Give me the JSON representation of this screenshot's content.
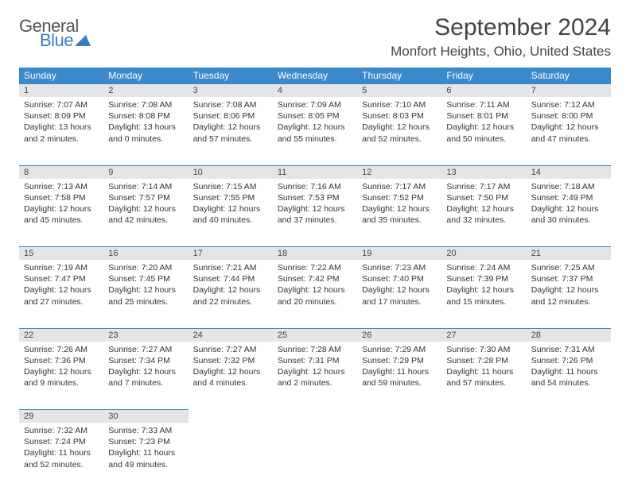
{
  "logo": {
    "line1": "General",
    "line2": "Blue"
  },
  "title": "September 2024",
  "location": "Monfort Heights, Ohio, United States",
  "colors": {
    "header_bg": "#3a8acb",
    "accent": "#3a7fc4",
    "daynum_bg": "#e5e5e5"
  },
  "day_headers": [
    "Sunday",
    "Monday",
    "Tuesday",
    "Wednesday",
    "Thursday",
    "Friday",
    "Saturday"
  ],
  "weeks": [
    [
      {
        "n": "1",
        "sr": "7:07 AM",
        "ss": "8:09 PM",
        "dl": "13 hours and 2 minutes."
      },
      {
        "n": "2",
        "sr": "7:08 AM",
        "ss": "8:08 PM",
        "dl": "13 hours and 0 minutes."
      },
      {
        "n": "3",
        "sr": "7:08 AM",
        "ss": "8:06 PM",
        "dl": "12 hours and 57 minutes."
      },
      {
        "n": "4",
        "sr": "7:09 AM",
        "ss": "8:05 PM",
        "dl": "12 hours and 55 minutes."
      },
      {
        "n": "5",
        "sr": "7:10 AM",
        "ss": "8:03 PM",
        "dl": "12 hours and 52 minutes."
      },
      {
        "n": "6",
        "sr": "7:11 AM",
        "ss": "8:01 PM",
        "dl": "12 hours and 50 minutes."
      },
      {
        "n": "7",
        "sr": "7:12 AM",
        "ss": "8:00 PM",
        "dl": "12 hours and 47 minutes."
      }
    ],
    [
      {
        "n": "8",
        "sr": "7:13 AM",
        "ss": "7:58 PM",
        "dl": "12 hours and 45 minutes."
      },
      {
        "n": "9",
        "sr": "7:14 AM",
        "ss": "7:57 PM",
        "dl": "12 hours and 42 minutes."
      },
      {
        "n": "10",
        "sr": "7:15 AM",
        "ss": "7:55 PM",
        "dl": "12 hours and 40 minutes."
      },
      {
        "n": "11",
        "sr": "7:16 AM",
        "ss": "7:53 PM",
        "dl": "12 hours and 37 minutes."
      },
      {
        "n": "12",
        "sr": "7:17 AM",
        "ss": "7:52 PM",
        "dl": "12 hours and 35 minutes."
      },
      {
        "n": "13",
        "sr": "7:17 AM",
        "ss": "7:50 PM",
        "dl": "12 hours and 32 minutes."
      },
      {
        "n": "14",
        "sr": "7:18 AM",
        "ss": "7:49 PM",
        "dl": "12 hours and 30 minutes."
      }
    ],
    [
      {
        "n": "15",
        "sr": "7:19 AM",
        "ss": "7:47 PM",
        "dl": "12 hours and 27 minutes."
      },
      {
        "n": "16",
        "sr": "7:20 AM",
        "ss": "7:45 PM",
        "dl": "12 hours and 25 minutes."
      },
      {
        "n": "17",
        "sr": "7:21 AM",
        "ss": "7:44 PM",
        "dl": "12 hours and 22 minutes."
      },
      {
        "n": "18",
        "sr": "7:22 AM",
        "ss": "7:42 PM",
        "dl": "12 hours and 20 minutes."
      },
      {
        "n": "19",
        "sr": "7:23 AM",
        "ss": "7:40 PM",
        "dl": "12 hours and 17 minutes."
      },
      {
        "n": "20",
        "sr": "7:24 AM",
        "ss": "7:39 PM",
        "dl": "12 hours and 15 minutes."
      },
      {
        "n": "21",
        "sr": "7:25 AM",
        "ss": "7:37 PM",
        "dl": "12 hours and 12 minutes."
      }
    ],
    [
      {
        "n": "22",
        "sr": "7:26 AM",
        "ss": "7:36 PM",
        "dl": "12 hours and 9 minutes."
      },
      {
        "n": "23",
        "sr": "7:27 AM",
        "ss": "7:34 PM",
        "dl": "12 hours and 7 minutes."
      },
      {
        "n": "24",
        "sr": "7:27 AM",
        "ss": "7:32 PM",
        "dl": "12 hours and 4 minutes."
      },
      {
        "n": "25",
        "sr": "7:28 AM",
        "ss": "7:31 PM",
        "dl": "12 hours and 2 minutes."
      },
      {
        "n": "26",
        "sr": "7:29 AM",
        "ss": "7:29 PM",
        "dl": "11 hours and 59 minutes."
      },
      {
        "n": "27",
        "sr": "7:30 AM",
        "ss": "7:28 PM",
        "dl": "11 hours and 57 minutes."
      },
      {
        "n": "28",
        "sr": "7:31 AM",
        "ss": "7:26 PM",
        "dl": "11 hours and 54 minutes."
      }
    ],
    [
      {
        "n": "29",
        "sr": "7:32 AM",
        "ss": "7:24 PM",
        "dl": "11 hours and 52 minutes."
      },
      {
        "n": "30",
        "sr": "7:33 AM",
        "ss": "7:23 PM",
        "dl": "11 hours and 49 minutes."
      },
      null,
      null,
      null,
      null,
      null
    ]
  ],
  "labels": {
    "sunrise": "Sunrise:",
    "sunset": "Sunset:",
    "daylight": "Daylight:"
  }
}
